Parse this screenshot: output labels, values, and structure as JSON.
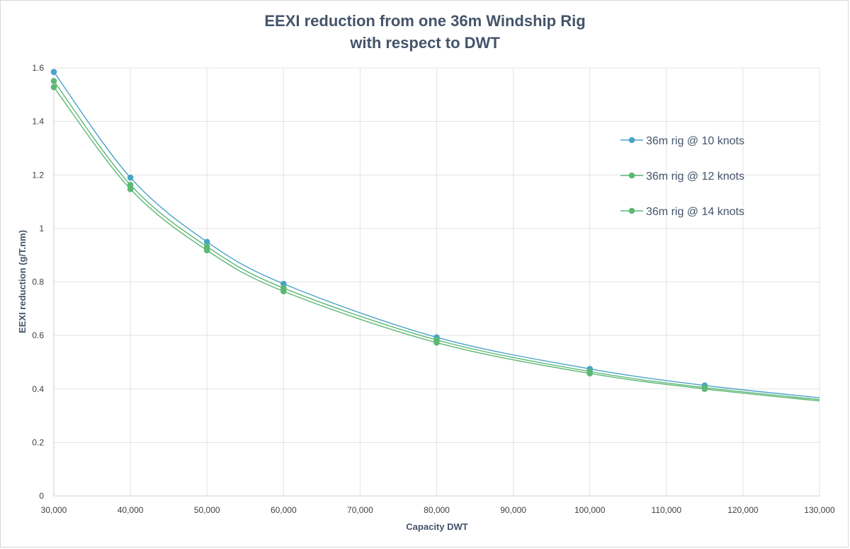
{
  "chart_data": {
    "type": "line",
    "title_line1": "EEXI reduction from one 36m Windship Rig",
    "title_line2": "with respect to DWT",
    "xlabel": "Capacity DWT",
    "ylabel": "EEXI reduction (g/T.nm)",
    "xlim": [
      30000,
      130000
    ],
    "ylim": [
      0,
      1.6
    ],
    "xticks": [
      30000,
      40000,
      50000,
      60000,
      70000,
      80000,
      90000,
      100000,
      110000,
      120000,
      130000
    ],
    "xtick_labels": [
      "30,000",
      "40,000",
      "50,000",
      "60,000",
      "70,000",
      "80,000",
      "90,000",
      "100,000",
      "110,000",
      "120,000",
      "130,000"
    ],
    "yticks": [
      0,
      0.2,
      0.4,
      0.6,
      0.8,
      1,
      1.2,
      1.4,
      1.6
    ],
    "ytick_labels": [
      "0",
      "0.2",
      "0.4",
      "0.6",
      "0.8",
      "1",
      "1.2",
      "1.4",
      "1.6"
    ],
    "grid": true,
    "legend_position": "top-right",
    "x": [
      30000,
      40000,
      50000,
      60000,
      80000,
      100000,
      115000
    ],
    "series": [
      {
        "name": "36m rig @ 10 knots",
        "color": "#4aa3c8",
        "values": [
          1.585,
          1.19,
          0.95,
          0.793,
          0.593,
          0.475,
          0.413
        ],
        "line_end": [
          130000,
          0.367
        ]
      },
      {
        "name": "36m rig @ 12 knots",
        "color": "#5cb874",
        "values": [
          1.551,
          1.163,
          0.932,
          0.777,
          0.583,
          0.465,
          0.405
        ],
        "line_end": [
          130000,
          0.36
        ]
      },
      {
        "name": "36m rig @ 14 knots",
        "color": "#5cb874",
        "values": [
          1.528,
          1.147,
          0.918,
          0.765,
          0.573,
          0.458,
          0.4
        ],
        "line_end": [
          130000,
          0.355
        ]
      }
    ]
  }
}
